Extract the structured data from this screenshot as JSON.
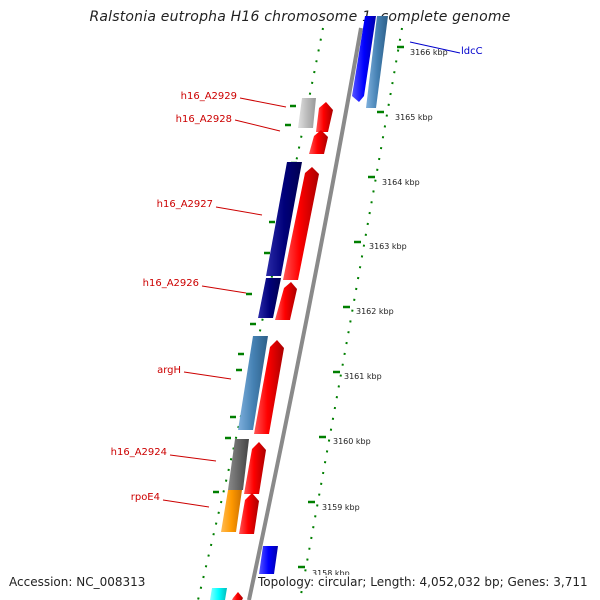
{
  "title": "Ralstonia eutropha H16 chromosome 1, complete genome",
  "footer": {
    "accession": "Accession: NC_008313",
    "summary": "Topology: circular; Length: 4,052,032 bp; Genes: 3,711"
  },
  "scale": {
    "unit": "kbp",
    "ticks": [
      "3166 kbp",
      "3165 kbp",
      "3164 kbp",
      "3163 kbp",
      "3162 kbp",
      "3161 kbp",
      "3160 kbp",
      "3159 kbp",
      "3158 kbp"
    ]
  },
  "gene_labels": [
    "ldcC",
    "h16_A2929",
    "h16_A2928",
    "h16_A2927",
    "h16_A2926",
    "argH",
    "h16_A2924",
    "rpoE4"
  ],
  "colors": {
    "label_red": "#cc0000",
    "label_blue": "#0000cc",
    "cds_red": "#ff0000",
    "dark_navy": "#00007a",
    "steel_blue": "#4682b4",
    "blue": "#0000ff",
    "orange": "#ff9900",
    "gray": "#666666",
    "light_gray": "#bbbbbb",
    "cyan": "#00ffff",
    "backbone": "#888888",
    "dotted": "#007f00"
  }
}
